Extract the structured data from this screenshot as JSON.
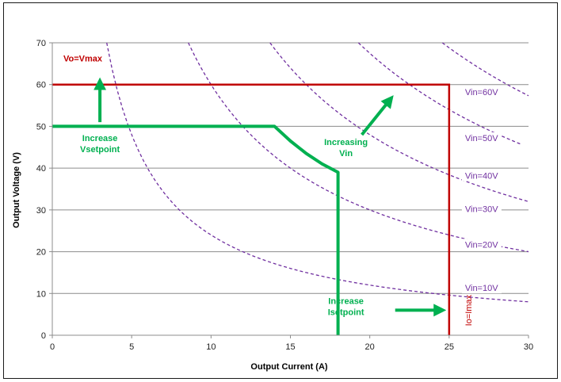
{
  "chart_data": {
    "type": "line",
    "title": "",
    "xlabel": "Output Current (A)",
    "ylabel": "Output Voltage (V)",
    "xlim": [
      0,
      30
    ],
    "ylim": [
      0,
      70
    ],
    "xticks": [
      0,
      5,
      10,
      15,
      20,
      25,
      30
    ],
    "yticks": [
      0,
      10,
      20,
      30,
      40,
      50,
      60,
      70
    ],
    "grid": "horizontal",
    "colors": {
      "limit": "#c00000",
      "operating": "#00b050",
      "power": "#7030a0"
    },
    "limit_lines": {
      "vmax": {
        "label": "Vo=Vmax",
        "voltage": 60
      },
      "imax": {
        "label": "Io=Imax",
        "current": 25
      }
    },
    "operating_curve": [
      [
        0,
        50
      ],
      [
        14,
        50
      ],
      [
        15,
        46.5
      ],
      [
        16,
        43.5
      ],
      [
        17,
        41
      ],
      [
        18,
        39
      ],
      [
        18,
        0
      ]
    ],
    "power_curves": [
      {
        "label": "Vin=10V",
        "k": 240,
        "xmax": 30
      },
      {
        "label": "Vin=20V",
        "k": 600,
        "xmax": 30
      },
      {
        "label": "Vin=30V",
        "k": 960,
        "xmax": 30
      },
      {
        "label": "Vin=40V",
        "k": 1350,
        "xmax": 29.5
      },
      {
        "label": "Vin=50V",
        "k": 1720,
        "xmax": 30
      },
      {
        "label": "Vin=60V",
        "k": 2100,
        "xmax": 30
      }
    ],
    "annotations": [
      {
        "lines": [
          "Increase",
          "Vsetpoint"
        ],
        "x": 3,
        "y": 46.5
      },
      {
        "lines": [
          "Increasing",
          "Vin"
        ],
        "x": 18.5,
        "y": 45.5
      },
      {
        "lines": [
          "Increase",
          "Isetpoint"
        ],
        "x": 18.5,
        "y": 7.5
      }
    ],
    "arrows": [
      {
        "from": [
          3,
          51
        ],
        "to": [
          3,
          60.5
        ]
      },
      {
        "from": [
          19.5,
          48
        ],
        "to": [
          21.3,
          56.5
        ]
      },
      {
        "from": [
          21.6,
          6
        ],
        "to": [
          24.5,
          6
        ]
      }
    ]
  }
}
